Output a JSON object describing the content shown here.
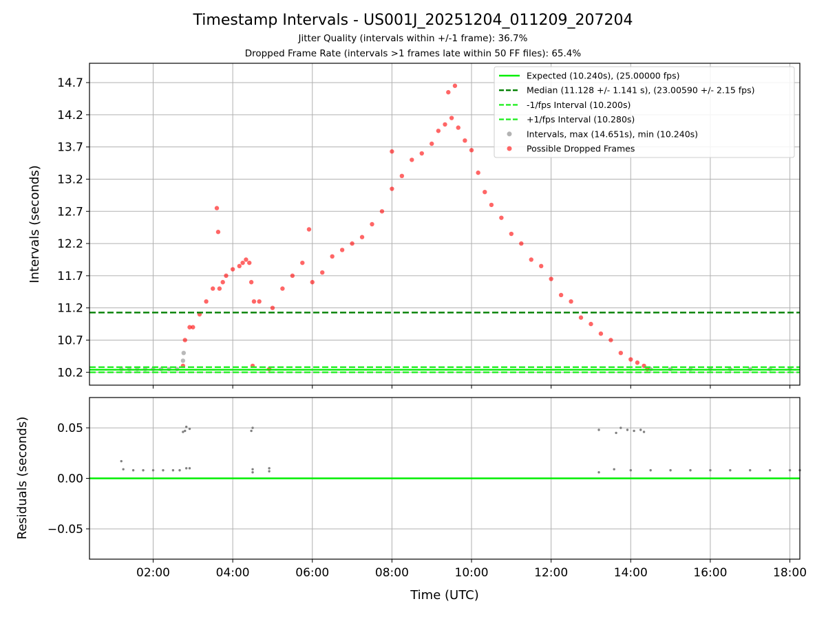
{
  "figure": {
    "title": "Timestamp Intervals - US001J_20251204_011209_207204",
    "subtitle_1": "Jitter Quality (intervals within +/-1 frame): 36.7%",
    "subtitle_2": "Dropped Frame Rate (intervals >1 frames late within 50 FF files): 65.4%"
  },
  "legend": [
    {
      "label": "Expected (10.240s), (25.00000 fps)",
      "kind": "line",
      "color": "#00ee00",
      "dash": "solid"
    },
    {
      "label": "Median (11.128 +/- 1.141 s), (23.00590 +/- 2.15 fps)",
      "kind": "line",
      "color": "#007f00",
      "dash": "dashed"
    },
    {
      "label": "-1/fps Interval (10.200s)",
      "kind": "line",
      "color": "#22ee22",
      "dash": "dashed"
    },
    {
      "label": "+1/fps Interval (10.280s)",
      "kind": "line",
      "color": "#22ee22",
      "dash": "dashed"
    },
    {
      "label": "Intervals, max (14.651s), min (10.240s)",
      "kind": "marker",
      "color": "#808080"
    },
    {
      "label": "Possible Dropped Frames",
      "kind": "marker",
      "color": "#ff0000"
    }
  ],
  "chart_data": [
    {
      "type": "scatter",
      "ylabel": "Intervals (seconds)",
      "xlim": [
        "00:24",
        "18:15"
      ],
      "ylim": [
        10.0,
        15.0
      ],
      "yticks": [
        "10.2",
        "10.7",
        "11.2",
        "11.7",
        "12.2",
        "12.7",
        "13.2",
        "13.7",
        "14.2",
        "14.7"
      ],
      "grid": true,
      "legend_position": "top-right",
      "reference_lines": [
        {
          "name": "Expected",
          "y": 10.24,
          "color": "#00ee00",
          "style": "solid"
        },
        {
          "name": "Median",
          "y": 11.128,
          "color": "#007f00",
          "style": "dashed"
        },
        {
          "name": "-1/fps Interval",
          "y": 10.2,
          "color": "#22ee22",
          "style": "dashed"
        },
        {
          "name": "+1/fps Interval",
          "y": 10.28,
          "color": "#22ee22",
          "style": "dashed"
        }
      ],
      "series": [
        {
          "name": "Intervals, max (14.651s), min (10.240s)",
          "color": "#808080",
          "points": [
            [
              "01:12",
              10.25
            ],
            [
              "01:24",
              10.25
            ],
            [
              "01:36",
              10.25
            ],
            [
              "01:48",
              10.25
            ],
            [
              "02:00",
              10.25
            ],
            [
              "02:12",
              10.25
            ],
            [
              "02:24",
              10.25
            ],
            [
              "02:36",
              10.25
            ],
            [
              "02:45",
              10.38
            ],
            [
              "02:46",
              10.5
            ],
            [
              "14:30",
              10.25
            ],
            [
              "15:00",
              10.25
            ],
            [
              "15:30",
              10.25
            ],
            [
              "16:00",
              10.25
            ],
            [
              "16:30",
              10.25
            ],
            [
              "17:00",
              10.25
            ],
            [
              "17:30",
              10.25
            ],
            [
              "18:00",
              10.25
            ]
          ]
        },
        {
          "name": "Possible Dropped Frames",
          "color": "#ff0000",
          "points": [
            [
              "02:45",
              10.3
            ],
            [
              "02:48",
              10.7
            ],
            [
              "02:55",
              10.9
            ],
            [
              "03:00",
              10.9
            ],
            [
              "03:10",
              11.1
            ],
            [
              "03:20",
              11.3
            ],
            [
              "03:30",
              11.5
            ],
            [
              "03:40",
              11.5
            ],
            [
              "03:45",
              11.6
            ],
            [
              "03:50",
              11.7
            ],
            [
              "04:00",
              11.8
            ],
            [
              "04:10",
              11.85
            ],
            [
              "04:15",
              11.9
            ],
            [
              "04:20",
              11.95
            ],
            [
              "04:25",
              11.9
            ],
            [
              "04:28",
              11.6
            ],
            [
              "04:30",
              10.3
            ],
            [
              "04:32",
              11.3
            ],
            [
              "04:40",
              11.3
            ],
            [
              "04:55",
              10.25
            ],
            [
              "05:00",
              11.2
            ],
            [
              "05:15",
              11.5
            ],
            [
              "05:30",
              11.7
            ],
            [
              "05:45",
              11.9
            ],
            [
              "06:00",
              11.6
            ],
            [
              "06:15",
              11.75
            ],
            [
              "06:30",
              12.0
            ],
            [
              "06:45",
              12.1
            ],
            [
              "07:00",
              12.2
            ],
            [
              "07:15",
              12.3
            ],
            [
              "07:30",
              12.5
            ],
            [
              "07:45",
              12.7
            ],
            [
              "08:00",
              13.05
            ],
            [
              "08:15",
              13.25
            ],
            [
              "08:30",
              13.5
            ],
            [
              "08:45",
              13.6
            ],
            [
              "09:00",
              13.75
            ],
            [
              "09:10",
              13.95
            ],
            [
              "09:20",
              14.05
            ],
            [
              "09:30",
              14.15
            ],
            [
              "09:40",
              14.0
            ],
            [
              "09:50",
              13.8
            ],
            [
              "10:00",
              13.65
            ],
            [
              "10:10",
              13.3
            ],
            [
              "10:20",
              13.0
            ],
            [
              "10:30",
              12.8
            ],
            [
              "10:45",
              12.6
            ],
            [
              "11:00",
              12.35
            ],
            [
              "11:15",
              12.2
            ],
            [
              "11:30",
              11.95
            ],
            [
              "11:45",
              11.85
            ],
            [
              "12:00",
              11.65
            ],
            [
              "12:15",
              11.4
            ],
            [
              "12:30",
              11.3
            ],
            [
              "12:45",
              11.05
            ],
            [
              "13:00",
              10.95
            ],
            [
              "13:15",
              10.8
            ],
            [
              "13:30",
              10.7
            ],
            [
              "13:45",
              10.5
            ],
            [
              "14:00",
              10.4
            ],
            [
              "14:10",
              10.35
            ],
            [
              "14:20",
              10.3
            ],
            [
              "14:25",
              10.25
            ],
            [
              "03:36",
              12.75
            ],
            [
              "03:38",
              12.38
            ],
            [
              "05:55",
              12.42
            ],
            [
              "09:35",
              14.65
            ],
            [
              "09:25",
              14.55
            ],
            [
              "08:00",
              13.63
            ]
          ]
        }
      ]
    },
    {
      "type": "scatter",
      "xlabel": "Time (UTC)",
      "ylabel": "Residuals (seconds)",
      "xlim": [
        "00:24",
        "18:15"
      ],
      "ylim": [
        -0.08,
        0.08
      ],
      "xticks": [
        "02:00",
        "04:00",
        "06:00",
        "08:00",
        "10:00",
        "12:00",
        "14:00",
        "16:00",
        "18:00"
      ],
      "yticks": [
        "−0.05",
        "0.00",
        "0.05"
      ],
      "grid": true,
      "reference_lines": [
        {
          "name": "Expected",
          "y": 0.0,
          "color": "#00ee00",
          "style": "solid"
        }
      ],
      "series": [
        {
          "name": "",
          "color": "#808080",
          "points": [
            [
              "01:12",
              0.017
            ],
            [
              "01:15",
              0.009
            ],
            [
              "01:30",
              0.008
            ],
            [
              "01:45",
              0.008
            ],
            [
              "02:00",
              0.008
            ],
            [
              "02:15",
              0.008
            ],
            [
              "02:30",
              0.008
            ],
            [
              "02:40",
              0.008
            ],
            [
              "02:45",
              0.046
            ],
            [
              "02:48",
              0.047
            ],
            [
              "02:50",
              0.051
            ],
            [
              "02:55",
              0.049
            ],
            [
              "02:50",
              0.01
            ],
            [
              "02:55",
              0.01
            ],
            [
              "04:28",
              0.047
            ],
            [
              "04:30",
              0.05
            ],
            [
              "04:30",
              0.009
            ],
            [
              "04:30",
              0.006
            ],
            [
              "04:55",
              0.01
            ],
            [
              "04:55",
              0.007
            ],
            [
              "13:12",
              0.048
            ],
            [
              "13:12",
              0.006
            ],
            [
              "13:38",
              0.045
            ],
            [
              "13:45",
              0.05
            ],
            [
              "13:55",
              0.048
            ],
            [
              "14:05",
              0.047
            ],
            [
              "14:15",
              0.048
            ],
            [
              "14:20",
              0.046
            ],
            [
              "13:35",
              0.009
            ],
            [
              "14:00",
              0.008
            ],
            [
              "14:30",
              0.008
            ],
            [
              "15:00",
              0.008
            ],
            [
              "15:30",
              0.008
            ],
            [
              "16:00",
              0.008
            ],
            [
              "16:30",
              0.008
            ],
            [
              "17:00",
              0.008
            ],
            [
              "17:30",
              0.008
            ],
            [
              "18:00",
              0.008
            ],
            [
              "18:15",
              0.008
            ]
          ]
        }
      ]
    }
  ]
}
